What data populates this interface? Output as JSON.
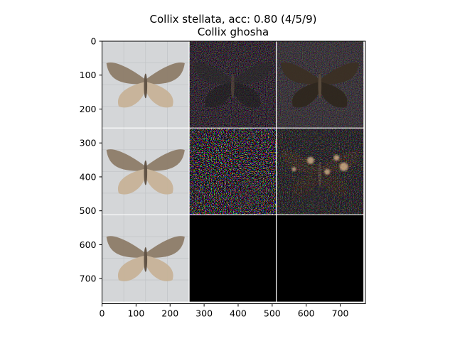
{
  "chart_data": {
    "type": "image_grid",
    "title_lines": [
      "Collix stellata, acc: 0.80 (4/5/9)",
      "Collix ghosha"
    ],
    "xlabel": "",
    "ylabel": "",
    "xlim": [
      0,
      774
    ],
    "ylim": [
      774,
      0
    ],
    "grid": false,
    "legend": "none",
    "x_ticks": [
      0,
      100,
      200,
      300,
      400,
      500,
      600,
      700
    ],
    "y_ticks": [
      0,
      100,
      200,
      300,
      400,
      500,
      600,
      700
    ],
    "panel_size": 256,
    "rows": 3,
    "cols": 3,
    "panels": [
      {
        "row": 0,
        "col": 0,
        "kind": "photo"
      },
      {
        "row": 0,
        "col": 1,
        "kind": "saliency-sparse"
      },
      {
        "row": 0,
        "col": 2,
        "kind": "overlay-dim"
      },
      {
        "row": 1,
        "col": 0,
        "kind": "photo"
      },
      {
        "row": 1,
        "col": 1,
        "kind": "saliency-dense"
      },
      {
        "row": 1,
        "col": 2,
        "kind": "overlay-bright"
      },
      {
        "row": 2,
        "col": 0,
        "kind": "photo"
      },
      {
        "row": 2,
        "col": 1,
        "kind": "blank"
      },
      {
        "row": 2,
        "col": 2,
        "kind": "blank"
      }
    ],
    "colors": {
      "axes": "#000000",
      "separator": "#ffffff",
      "blank_panel": "#000000",
      "moth_body": "#8c7a66",
      "moth_light": "#c7b296",
      "photo_bg": "#d4d6d8"
    }
  }
}
